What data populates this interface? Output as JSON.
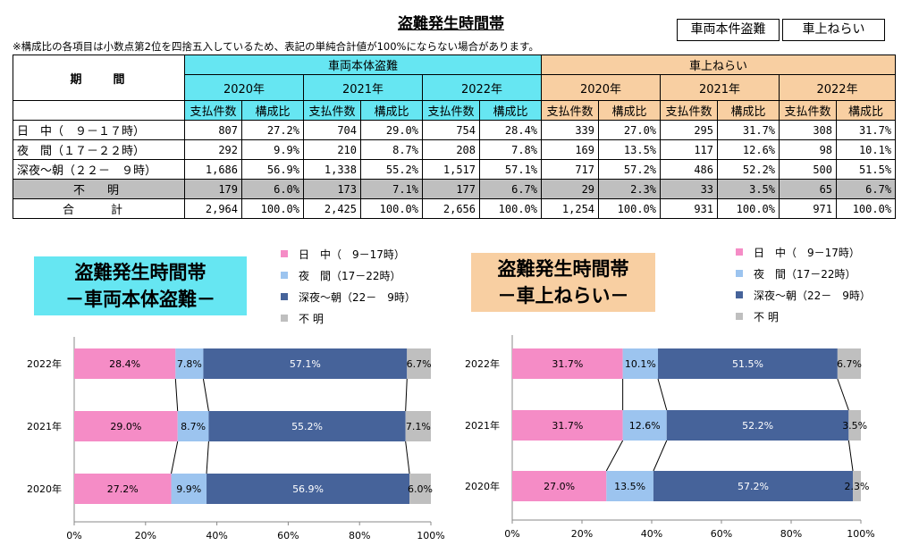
{
  "page_title": "盗難発生時間帯",
  "buttons": [
    "車両本件盗難",
    "車上ねらい"
  ],
  "note": "※構成比の各項目は小数点第2位を四捨五入しているため、表記の単純合計値が100%にならない場合があります。",
  "table": {
    "period_header": "期　　間",
    "groups": [
      "車両本体盗難",
      "車上ねらい"
    ],
    "years": [
      "2020年",
      "2021年",
      "2022年",
      "2020年",
      "2021年",
      "2022年"
    ],
    "subheaders": [
      "支払件数",
      "構成比"
    ],
    "rows": [
      {
        "label": "日　中（　９－１７時）",
        "cells": [
          "807",
          "27.2%",
          "704",
          "29.0%",
          "754",
          "28.4%",
          "339",
          "27.0%",
          "295",
          "31.7%",
          "308",
          "31.7%"
        ]
      },
      {
        "label": "夜　間（１７－２２時）",
        "cells": [
          "292",
          "9.9%",
          "210",
          "8.7%",
          "208",
          "7.8%",
          "169",
          "13.5%",
          "117",
          "12.6%",
          "98",
          "10.1%"
        ]
      },
      {
        "label": "深夜～朝（２２－　９時）",
        "cells": [
          "1,686",
          "56.9%",
          "1,338",
          "55.2%",
          "1,517",
          "57.1%",
          "717",
          "57.2%",
          "486",
          "52.2%",
          "500",
          "51.5%"
        ]
      },
      {
        "label": "不　明",
        "cells": [
          "179",
          "6.0%",
          "173",
          "7.1%",
          "177",
          "6.7%",
          "29",
          "2.3%",
          "33",
          "3.5%",
          "65",
          "6.7%"
        ]
      },
      {
        "label": "合　計",
        "cells": [
          "2,964",
          "100.0%",
          "2,425",
          "100.0%",
          "2,656",
          "100.0%",
          "1,254",
          "100.0%",
          "931",
          "100.0%",
          "971",
          "100.0%"
        ]
      }
    ]
  },
  "colors": {
    "day": "#f58cc6",
    "evening": "#9cc4ef",
    "night": "#46639a",
    "unknown": "#bfbfbf",
    "cyan": "#66e6f2",
    "peach": "#f8cfa2"
  },
  "chart_data": [
    {
      "type": "bar",
      "orientation": "horizontal-stacked-100",
      "title": "盗難発生時間帯\n－車両本体盗難－",
      "title_lines": [
        "盗難発生時間帯",
        "－車両本体盗難－"
      ],
      "categories": [
        "2022年",
        "2021年",
        "2020年"
      ],
      "series": [
        {
          "name": "日　中（　9－17時）",
          "values": [
            28.4,
            29.0,
            27.2
          ]
        },
        {
          "name": "夜　間（17－22時）",
          "values": [
            7.8,
            8.7,
            9.9
          ]
        },
        {
          "name": "深夜～朝（22－　9時）",
          "values": [
            57.1,
            55.2,
            56.9
          ]
        },
        {
          "name": "不 明",
          "values": [
            6.7,
            7.1,
            6.0
          ]
        }
      ],
      "xlim": [
        0,
        100
      ],
      "xticks": [
        "0%",
        "20%",
        "40%",
        "60%",
        "80%",
        "100%"
      ],
      "legend": "top-right"
    },
    {
      "type": "bar",
      "orientation": "horizontal-stacked-100",
      "title": "盗難発生時間帯\n－車上ねらい－",
      "title_lines": [
        "盗難発生時間帯",
        "－車上ねらい－"
      ],
      "categories": [
        "2022年",
        "2021年",
        "2020年"
      ],
      "series": [
        {
          "name": "日　中（　9－17時）",
          "values": [
            31.7,
            31.7,
            27.0
          ]
        },
        {
          "name": "夜　間（17－22時）",
          "values": [
            10.1,
            12.6,
            13.5
          ]
        },
        {
          "name": "深夜～朝（22－　9時）",
          "values": [
            51.5,
            52.2,
            57.2
          ]
        },
        {
          "name": "不 明",
          "values": [
            6.7,
            3.5,
            2.3
          ]
        }
      ],
      "xlim": [
        0,
        100
      ],
      "xticks": [
        "0%",
        "20%",
        "40%",
        "60%",
        "80%",
        "100%"
      ],
      "legend": "top-right"
    }
  ]
}
